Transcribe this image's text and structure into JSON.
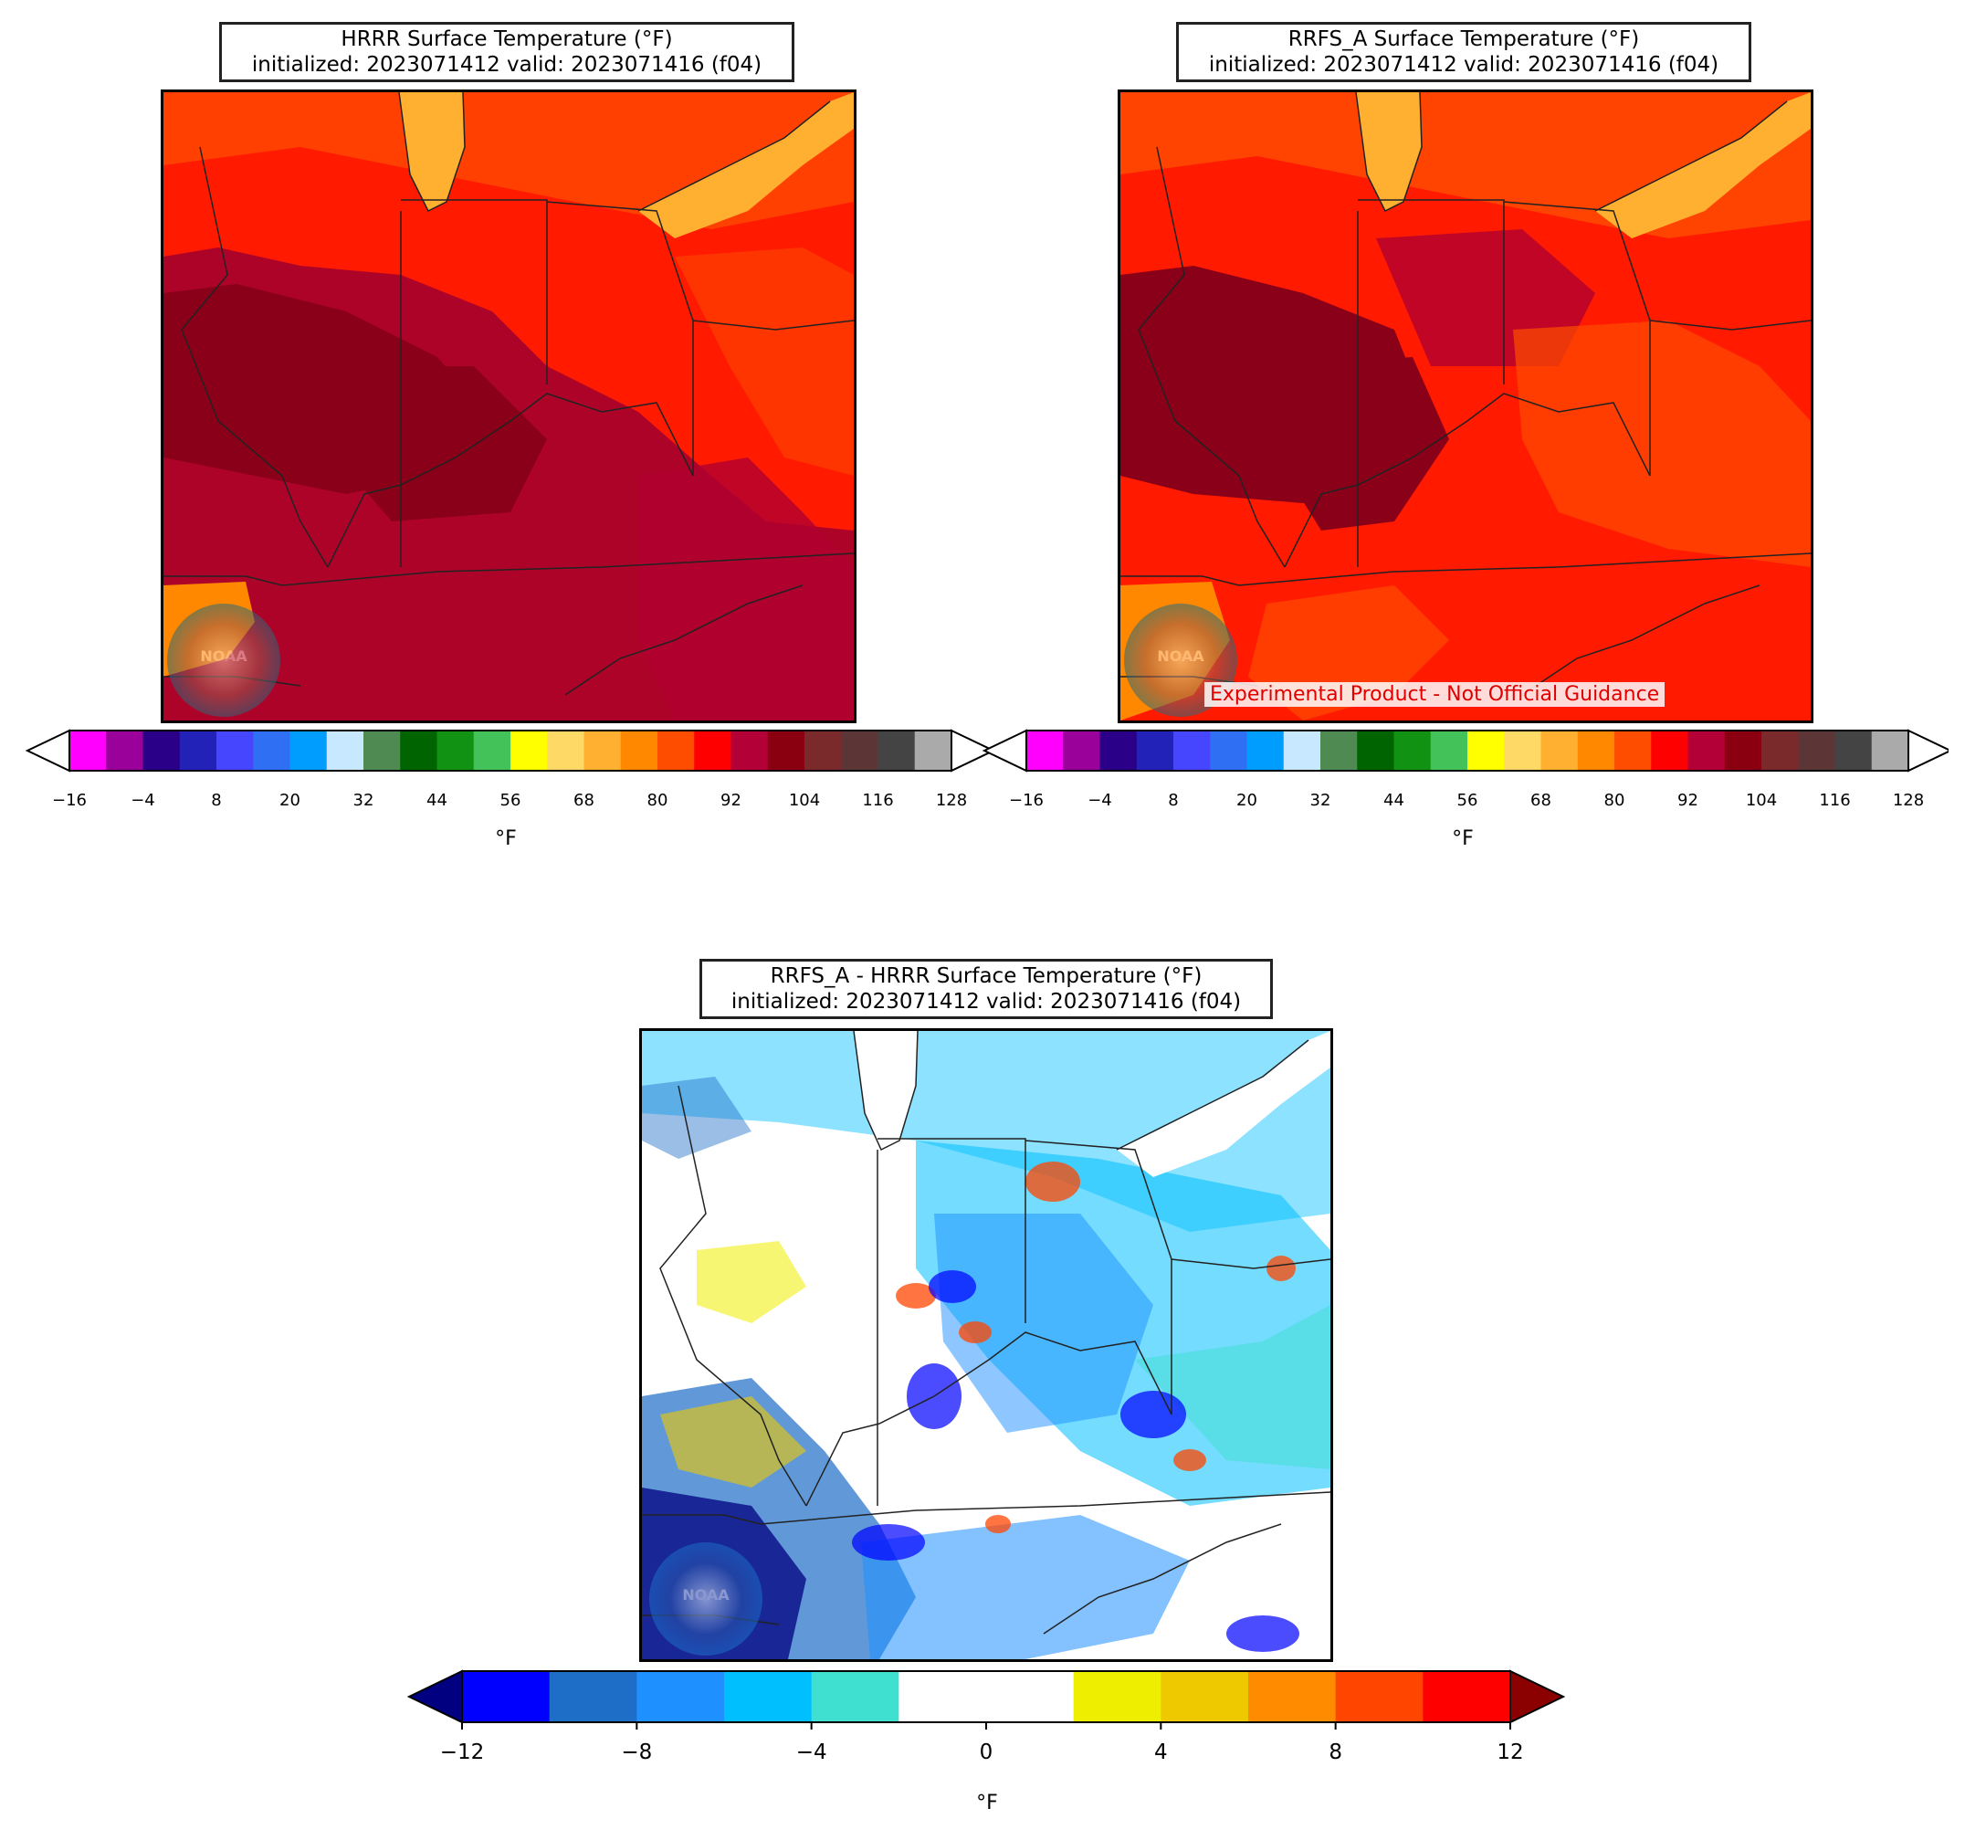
{
  "panels": [
    {
      "id": "hrrr",
      "title_line1": "HRRR Surface Temperature (°F)",
      "title_line2": "initialized: 2023071412 valid: 2023071416 (f04)"
    },
    {
      "id": "rrfs",
      "title_line1": "RRFS_A Surface Temperature (°F)",
      "title_line2": "initialized: 2023071412 valid: 2023071416 (f04)",
      "watermark": "Experimental Product - Not Official Guidance"
    },
    {
      "id": "diff",
      "title_line1": "RRFS_A - HRRR Surface Temperature (°F)",
      "title_line2": "initialized: 2023071412 valid: 2023071416 (f04)"
    }
  ],
  "logo": {
    "text": "NOAA",
    "icon": "noaa-logo-icon"
  },
  "temp_colorbar": {
    "unit": "°F",
    "ticks": [
      "−16",
      "−4",
      "8",
      "20",
      "32",
      "44",
      "56",
      "68",
      "80",
      "92",
      "104",
      "116",
      "128"
    ],
    "tick_values": [
      -16,
      -4,
      8,
      20,
      32,
      44,
      56,
      68,
      80,
      92,
      104,
      116,
      128
    ],
    "bounds": [
      -16,
      128
    ],
    "colors": [
      "#ff00ff",
      "#9a009a",
      "#2a0088",
      "#2222b8",
      "#4646ff",
      "#2f6ff4",
      "#009dff",
      "#c8e8ff",
      "#4e8a52",
      "#006400",
      "#129212",
      "#44c25a",
      "#ffff00",
      "#ffd966",
      "#ffb030",
      "#ff8800",
      "#ff4d00",
      "#ff0000",
      "#b30036",
      "#8b0011",
      "#7a2a2a",
      "#5c3636",
      "#444444",
      "#aaaaaa"
    ]
  },
  "diff_colorbar": {
    "unit": "°F",
    "ticks": [
      "−12",
      "−8",
      "−4",
      "0",
      "4",
      "8",
      "12"
    ],
    "tick_values": [
      -12,
      -8,
      -4,
      0,
      4,
      8,
      12
    ],
    "bounds": [
      -12,
      12
    ],
    "colors": [
      "#0000ff",
      "#1e6ec8",
      "#1e90ff",
      "#00bfff",
      "#40e0d0",
      "#ffffff",
      "#ffffff",
      "#eeee00",
      "#eec900",
      "#ff8c00",
      "#ff4500",
      "#ff0000"
    ],
    "under_color": "#000080",
    "over_color": "#8b0000"
  }
}
